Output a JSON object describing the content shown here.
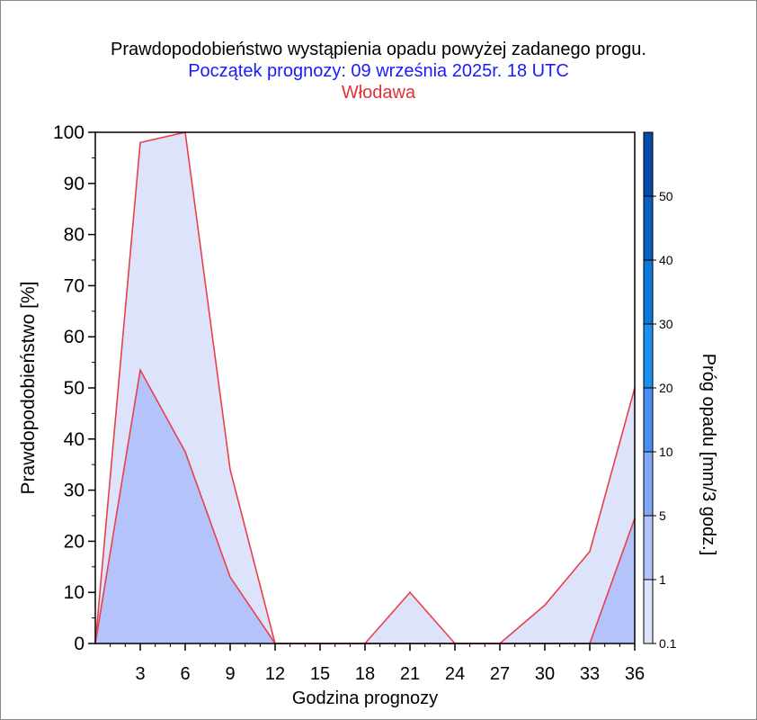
{
  "chart_data": {
    "type": "area",
    "title": "Prawdopodobieństwo wystąpienia opadu powyżej zadanego progu.",
    "subtitle": "Początek prognozy: 09 września 2025r. 18 UTC",
    "location": "Włodawa",
    "xlabel": "Godzina prognozy",
    "ylabel": "Prawdopodobieństwo [%]",
    "colorbar_label": "Próg opadu [mm/3 godz.]",
    "xlim": [
      0,
      36
    ],
    "ylim": [
      0,
      100
    ],
    "xticks": [
      "3",
      "6",
      "9",
      "12",
      "15",
      "18",
      "21",
      "24",
      "27",
      "30",
      "33",
      "36"
    ],
    "yticks": [
      "0",
      "10",
      "20",
      "30",
      "40",
      "50",
      "60",
      "70",
      "80",
      "90",
      "100"
    ],
    "x": [
      0,
      3,
      6,
      9,
      12,
      15,
      18,
      21,
      24,
      27,
      30,
      33,
      36
    ],
    "series": [
      {
        "threshold": "0.1",
        "color": "#dde3fb",
        "values": [
          0,
          98,
          100,
          34,
          0,
          0,
          0,
          10,
          0,
          0,
          7.5,
          18,
          50
        ]
      },
      {
        "threshold": "1",
        "color": "#b4c4fa",
        "values": [
          0,
          53.5,
          37.5,
          13,
          0,
          0,
          0,
          0,
          0,
          0,
          0,
          0,
          24.5
        ]
      }
    ],
    "outline_color": "#e8404a",
    "colorbar": {
      "labels": [
        "0.1",
        "1",
        "5",
        "10",
        "20",
        "30",
        "40",
        "50"
      ],
      "levels": [
        0.1,
        1,
        5,
        10,
        20,
        30,
        40,
        50,
        60
      ],
      "colors": [
        "#dde3fb",
        "#b4c4fa",
        "#7ea7f6",
        "#4a8ff2",
        "#1b90ee",
        "#0c78dc",
        "#0960c4",
        "#0748aa",
        "#053a92"
      ]
    }
  }
}
